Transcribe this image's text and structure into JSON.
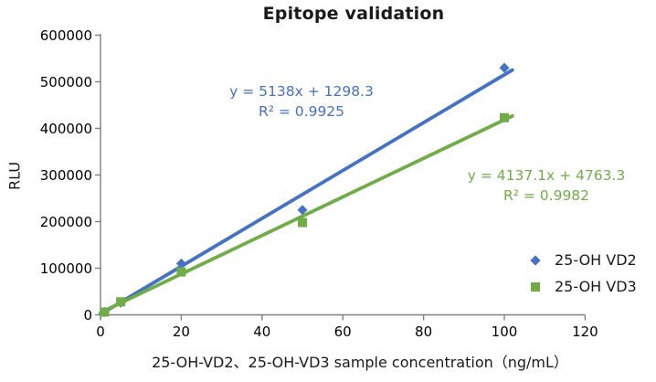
{
  "title": "Epitope validation",
  "chart_data": {
    "type": "scatter",
    "title": "Epitope validation",
    "xlabel": "25-OH-VD2、25-OH-VD3 sample concentration（ng/mL）",
    "ylabel": "RLU",
    "xlim": [
      0,
      120
    ],
    "ylim": [
      0,
      600000
    ],
    "x_ticks": [
      "0",
      "20",
      "40",
      "60",
      "80",
      "100",
      "120"
    ],
    "y_ticks": [
      "0",
      "100000",
      "200000",
      "300000",
      "400000",
      "500000",
      "600000"
    ],
    "grid": false,
    "legend_position": "right",
    "x": [
      1,
      5,
      20,
      50,
      100
    ],
    "series": [
      {
        "name": "25-OH VD2",
        "color": "#4472C4",
        "marker": "diamond",
        "values": [
          6000,
          26000,
          110000,
          225000,
          530000
        ],
        "trendline": {
          "slope": 5138,
          "intercept": 1298.3,
          "x_start": 0,
          "x_end": 102
        },
        "equation": "y = 5138x + 1298.3",
        "r_squared": "R² = 0.9925"
      },
      {
        "name": "25-OH VD3",
        "color": "#70AD47",
        "marker": "square",
        "values": [
          6000,
          28000,
          92000,
          198000,
          423000
        ],
        "trendline": {
          "slope": 4137.1,
          "intercept": 4763.3,
          "x_start": 0,
          "x_end": 102
        },
        "equation": "y = 4137.1x + 4763.3",
        "r_squared": "R² = 0.9982"
      }
    ]
  }
}
